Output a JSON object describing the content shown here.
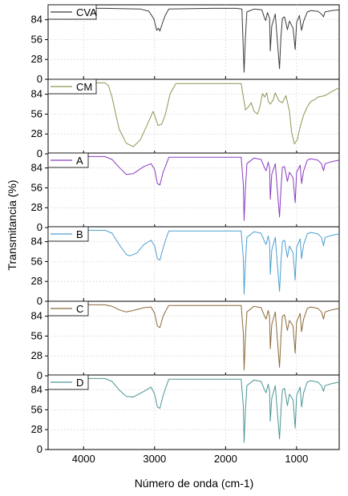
{
  "chart_data": {
    "type": "line",
    "title": "",
    "xlabel": "Número de onda (cm-1)",
    "ylabel": "Transmitancia (%)",
    "xlim": [
      4500,
      400
    ],
    "ylim": [
      0,
      105
    ],
    "x_ticks": [
      4000,
      3000,
      2000,
      1000
    ],
    "y_ticks": [
      0,
      28,
      56,
      84
    ],
    "grid": true,
    "legend_placement": "top-left",
    "panels": [
      {
        "name": "CVA",
        "color": "#3c3c3c",
        "points": [
          [
            4500,
            100
          ],
          [
            3700,
            100
          ],
          [
            3200,
            99
          ],
          [
            3080,
            96
          ],
          [
            3010,
            85
          ],
          [
            2970,
            69
          ],
          [
            2945,
            72
          ],
          [
            2925,
            68
          ],
          [
            2880,
            82
          ],
          [
            2850,
            90
          ],
          [
            2800,
            99
          ],
          [
            2200,
            100
          ],
          [
            1850,
            100
          ],
          [
            1770,
            99
          ],
          [
            1740,
            10
          ],
          [
            1720,
            60
          ],
          [
            1700,
            95
          ],
          [
            1600,
            99
          ],
          [
            1490,
            98
          ],
          [
            1450,
            86
          ],
          [
            1435,
            83
          ],
          [
            1410,
            94
          ],
          [
            1380,
            86
          ],
          [
            1370,
            40
          ],
          [
            1350,
            75
          ],
          [
            1300,
            92
          ],
          [
            1240,
            15
          ],
          [
            1220,
            60
          ],
          [
            1200,
            86
          ],
          [
            1170,
            88
          ],
          [
            1130,
            70
          ],
          [
            1100,
            82
          ],
          [
            1050,
            72
          ],
          [
            1020,
            42
          ],
          [
            1000,
            80
          ],
          [
            960,
            90
          ],
          [
            930,
            69
          ],
          [
            900,
            82
          ],
          [
            850,
            95
          ],
          [
            800,
            97
          ],
          [
            720,
            96
          ],
          [
            700,
            96
          ],
          [
            650,
            92
          ],
          [
            620,
            88
          ],
          [
            600,
            95
          ],
          [
            500,
            97
          ],
          [
            400,
            98
          ]
        ]
      },
      {
        "name": "CM",
        "color": "#8b9752",
        "points": [
          [
            4500,
            100
          ],
          [
            3700,
            100
          ],
          [
            3650,
            96
          ],
          [
            3600,
            80
          ],
          [
            3500,
            35
          ],
          [
            3400,
            15
          ],
          [
            3300,
            10
          ],
          [
            3200,
            20
          ],
          [
            3100,
            42
          ],
          [
            3020,
            60
          ],
          [
            2950,
            40
          ],
          [
            2900,
            42
          ],
          [
            2850,
            55
          ],
          [
            2780,
            85
          ],
          [
            2700,
            99
          ],
          [
            2000,
            99
          ],
          [
            1780,
            99
          ],
          [
            1750,
            80
          ],
          [
            1720,
            62
          ],
          [
            1680,
            66
          ],
          [
            1640,
            72
          ],
          [
            1600,
            60
          ],
          [
            1550,
            56
          ],
          [
            1520,
            65
          ],
          [
            1480,
            85
          ],
          [
            1450,
            80
          ],
          [
            1420,
            86
          ],
          [
            1400,
            74
          ],
          [
            1370,
            70
          ],
          [
            1330,
            76
          ],
          [
            1300,
            86
          ],
          [
            1250,
            75
          ],
          [
            1200,
            72
          ],
          [
            1170,
            78
          ],
          [
            1150,
            82
          ],
          [
            1100,
            60
          ],
          [
            1070,
            30
          ],
          [
            1030,
            14
          ],
          [
            990,
            20
          ],
          [
            950,
            38
          ],
          [
            900,
            55
          ],
          [
            850,
            66
          ],
          [
            800,
            74
          ],
          [
            750,
            76
          ],
          [
            700,
            80
          ],
          [
            600,
            82
          ],
          [
            500,
            88
          ],
          [
            400,
            93
          ]
        ]
      },
      {
        "name": "A",
        "color": "#8b3cc0",
        "points": [
          [
            4500,
            100
          ],
          [
            3700,
            100
          ],
          [
            3600,
            96
          ],
          [
            3500,
            85
          ],
          [
            3400,
            75
          ],
          [
            3300,
            76
          ],
          [
            3150,
            86
          ],
          [
            3050,
            90
          ],
          [
            3000,
            82
          ],
          [
            2960,
            62
          ],
          [
            2925,
            60
          ],
          [
            2880,
            78
          ],
          [
            2840,
            88
          ],
          [
            2800,
            99
          ],
          [
            2000,
            99
          ],
          [
            1780,
            99
          ],
          [
            1750,
            60
          ],
          [
            1740,
            10
          ],
          [
            1720,
            55
          ],
          [
            1700,
            90
          ],
          [
            1600,
            98
          ],
          [
            1500,
            96
          ],
          [
            1450,
            84
          ],
          [
            1430,
            80
          ],
          [
            1400,
            92
          ],
          [
            1380,
            84
          ],
          [
            1370,
            40
          ],
          [
            1350,
            75
          ],
          [
            1300,
            90
          ],
          [
            1240,
            15
          ],
          [
            1220,
            55
          ],
          [
            1200,
            85
          ],
          [
            1170,
            86
          ],
          [
            1130,
            65
          ],
          [
            1100,
            78
          ],
          [
            1050,
            70
          ],
          [
            1020,
            35
          ],
          [
            1000,
            78
          ],
          [
            950,
            88
          ],
          [
            930,
            62
          ],
          [
            900,
            80
          ],
          [
            850,
            95
          ],
          [
            800,
            97
          ],
          [
            700,
            95
          ],
          [
            650,
            90
          ],
          [
            620,
            80
          ],
          [
            600,
            90
          ],
          [
            500,
            93
          ],
          [
            400,
            95
          ]
        ]
      },
      {
        "name": "B",
        "color": "#4d9fd0",
        "points": [
          [
            4500,
            100
          ],
          [
            3700,
            100
          ],
          [
            3600,
            96
          ],
          [
            3500,
            80
          ],
          [
            3400,
            66
          ],
          [
            3350,
            64
          ],
          [
            3250,
            68
          ],
          [
            3150,
            80
          ],
          [
            3050,
            86
          ],
          [
            3000,
            78
          ],
          [
            2960,
            60
          ],
          [
            2925,
            58
          ],
          [
            2880,
            75
          ],
          [
            2840,
            88
          ],
          [
            2800,
            99
          ],
          [
            2000,
            99
          ],
          [
            1780,
            99
          ],
          [
            1750,
            60
          ],
          [
            1740,
            10
          ],
          [
            1720,
            55
          ],
          [
            1700,
            90
          ],
          [
            1600,
            98
          ],
          [
            1500,
            96
          ],
          [
            1450,
            84
          ],
          [
            1430,
            80
          ],
          [
            1400,
            92
          ],
          [
            1380,
            82
          ],
          [
            1370,
            38
          ],
          [
            1350,
            72
          ],
          [
            1300,
            90
          ],
          [
            1240,
            14
          ],
          [
            1220,
            55
          ],
          [
            1200,
            84
          ],
          [
            1170,
            86
          ],
          [
            1130,
            62
          ],
          [
            1100,
            78
          ],
          [
            1050,
            68
          ],
          [
            1020,
            30
          ],
          [
            1000,
            76
          ],
          [
            950,
            88
          ],
          [
            930,
            60
          ],
          [
            900,
            80
          ],
          [
            850,
            95
          ],
          [
            800,
            97
          ],
          [
            700,
            95
          ],
          [
            650,
            90
          ],
          [
            620,
            78
          ],
          [
            600,
            90
          ],
          [
            500,
            93
          ],
          [
            400,
            95
          ]
        ]
      },
      {
        "name": "C",
        "color": "#8b6a3a",
        "points": [
          [
            4500,
            100
          ],
          [
            3700,
            100
          ],
          [
            3600,
            98
          ],
          [
            3500,
            93
          ],
          [
            3400,
            90
          ],
          [
            3300,
            92
          ],
          [
            3150,
            96
          ],
          [
            3050,
            97
          ],
          [
            3000,
            88
          ],
          [
            2960,
            70
          ],
          [
            2925,
            68
          ],
          [
            2880,
            84
          ],
          [
            2840,
            92
          ],
          [
            2800,
            99
          ],
          [
            2000,
            99
          ],
          [
            1780,
            99
          ],
          [
            1750,
            60
          ],
          [
            1740,
            8
          ],
          [
            1720,
            55
          ],
          [
            1700,
            90
          ],
          [
            1600,
            98
          ],
          [
            1500,
            96
          ],
          [
            1450,
            84
          ],
          [
            1430,
            80
          ],
          [
            1400,
            92
          ],
          [
            1380,
            82
          ],
          [
            1370,
            38
          ],
          [
            1350,
            72
          ],
          [
            1300,
            90
          ],
          [
            1240,
            12
          ],
          [
            1220,
            55
          ],
          [
            1200,
            84
          ],
          [
            1170,
            86
          ],
          [
            1130,
            64
          ],
          [
            1100,
            78
          ],
          [
            1050,
            70
          ],
          [
            1020,
            32
          ],
          [
            1000,
            76
          ],
          [
            950,
            88
          ],
          [
            930,
            62
          ],
          [
            900,
            80
          ],
          [
            850,
            95
          ],
          [
            800,
            97
          ],
          [
            700,
            95
          ],
          [
            650,
            90
          ],
          [
            620,
            80
          ],
          [
            600,
            90
          ],
          [
            500,
            93
          ],
          [
            400,
            95
          ]
        ]
      },
      {
        "name": "D",
        "color": "#4d9696",
        "points": [
          [
            4500,
            100
          ],
          [
            3700,
            100
          ],
          [
            3600,
            96
          ],
          [
            3500,
            84
          ],
          [
            3400,
            75
          ],
          [
            3300,
            74
          ],
          [
            3150,
            82
          ],
          [
            3050,
            88
          ],
          [
            3000,
            78
          ],
          [
            2960,
            60
          ],
          [
            2925,
            58
          ],
          [
            2880,
            76
          ],
          [
            2840,
            88
          ],
          [
            2800,
            99
          ],
          [
            2000,
            99
          ],
          [
            1780,
            99
          ],
          [
            1750,
            60
          ],
          [
            1740,
            10
          ],
          [
            1720,
            55
          ],
          [
            1700,
            90
          ],
          [
            1600,
            98
          ],
          [
            1500,
            96
          ],
          [
            1450,
            84
          ],
          [
            1430,
            80
          ],
          [
            1400,
            92
          ],
          [
            1380,
            82
          ],
          [
            1370,
            40
          ],
          [
            1350,
            72
          ],
          [
            1300,
            90
          ],
          [
            1240,
            15
          ],
          [
            1220,
            55
          ],
          [
            1200,
            84
          ],
          [
            1170,
            86
          ],
          [
            1130,
            62
          ],
          [
            1100,
            78
          ],
          [
            1050,
            70
          ],
          [
            1020,
            30
          ],
          [
            1000,
            76
          ],
          [
            950,
            88
          ],
          [
            930,
            60
          ],
          [
            900,
            80
          ],
          [
            850,
            95
          ],
          [
            800,
            97
          ],
          [
            700,
            95
          ],
          [
            650,
            90
          ],
          [
            620,
            82
          ],
          [
            600,
            90
          ],
          [
            500,
            93
          ],
          [
            400,
            95
          ]
        ]
      }
    ]
  }
}
